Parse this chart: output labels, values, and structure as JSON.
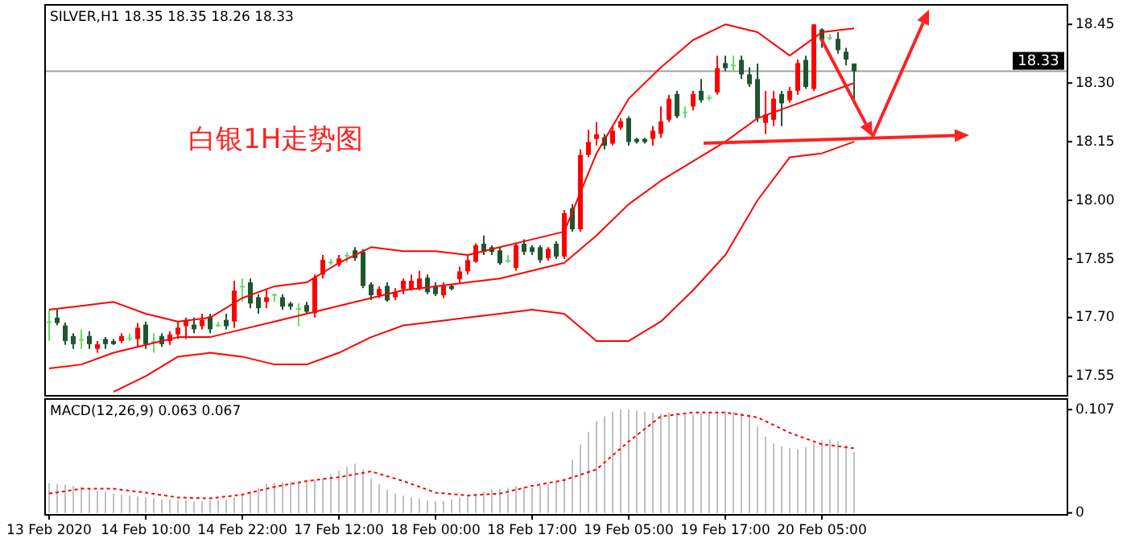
{
  "chart_data": [
    {
      "type": "candlestick",
      "title": "SILVER,H1  18.35 18.35 18.26 18.33",
      "categories": [
        null,
        null,
        null,
        null,
        null,
        null,
        null,
        null,
        null,
        null,
        null,
        null,
        null,
        null,
        null,
        null,
        null,
        null,
        null,
        null,
        null,
        null,
        null,
        null,
        null,
        null,
        null,
        null,
        null,
        null,
        null,
        null,
        null,
        null,
        null,
        null,
        null,
        null,
        null,
        null,
        null,
        null,
        null,
        null,
        null,
        null,
        null,
        null,
        null,
        null,
        null,
        null,
        null,
        null,
        null,
        null,
        null,
        null,
        null,
        null,
        null,
        null,
        null,
        null,
        null,
        null,
        null,
        null,
        null,
        null,
        null,
        null,
        null,
        null,
        null,
        null,
        null,
        null,
        null,
        null,
        null,
        null,
        null,
        null,
        null,
        null,
        null,
        null,
        null,
        null,
        null,
        null,
        null,
        null,
        null,
        null,
        null,
        null,
        null,
        null,
        null,
        null,
        null,
        null,
        null,
        null,
        null,
        null,
        null,
        null,
        null,
        null,
        null,
        null,
        null,
        null,
        null,
        null,
        null,
        null,
        null,
        null,
        null,
        null,
        null,
        null,
        null
      ],
      "ohlc": [
        [
          17.69,
          17.72,
          17.64,
          17.69
        ],
        [
          17.7,
          17.72,
          17.68,
          17.686
        ],
        [
          17.68,
          17.687,
          17.63,
          17.64
        ],
        [
          17.653,
          17.66,
          17.62,
          17.632
        ],
        [
          17.645,
          17.67,
          17.62,
          17.645
        ],
        [
          17.653,
          17.665,
          17.62,
          17.632
        ],
        [
          17.62,
          17.64,
          17.61,
          17.632
        ],
        [
          17.645,
          17.65,
          17.62,
          17.632
        ],
        [
          17.64,
          17.645,
          17.63,
          17.632
        ],
        [
          17.64,
          17.66,
          17.635,
          17.653
        ],
        [
          17.649,
          17.66,
          17.64,
          17.649
        ],
        [
          17.645,
          17.686,
          17.625,
          17.674
        ],
        [
          17.682,
          17.69,
          17.62,
          17.632
        ],
        [
          17.64,
          17.66,
          17.61,
          17.64
        ],
        [
          17.653,
          17.66,
          17.625,
          17.632
        ],
        [
          17.64,
          17.665,
          17.63,
          17.657
        ],
        [
          17.657,
          17.69,
          17.645,
          17.674
        ],
        [
          17.678,
          17.7,
          17.645,
          17.694
        ],
        [
          17.682,
          17.7,
          17.66,
          17.67
        ],
        [
          17.678,
          17.71,
          17.67,
          17.694
        ],
        [
          17.703,
          17.71,
          17.66,
          17.67
        ],
        [
          17.682,
          17.69,
          17.676,
          17.682
        ],
        [
          17.694,
          17.71,
          17.67,
          17.678
        ],
        [
          17.69,
          17.794,
          17.674,
          17.769
        ],
        [
          17.781,
          17.8,
          17.74,
          17.781
        ],
        [
          17.79,
          17.8,
          17.724,
          17.736
        ],
        [
          17.752,
          17.76,
          17.71,
          17.724
        ],
        [
          17.74,
          17.77,
          17.724,
          17.752
        ],
        [
          17.76,
          17.762,
          17.74,
          17.76
        ],
        [
          17.752,
          17.76,
          17.72,
          17.728
        ],
        [
          17.736,
          17.74,
          17.72,
          17.728
        ],
        [
          17.724,
          17.736,
          17.678,
          17.724
        ],
        [
          17.732,
          17.74,
          17.71,
          17.715
        ],
        [
          17.711,
          17.81,
          17.7,
          17.802
        ],
        [
          17.81,
          17.86,
          17.8,
          17.848
        ],
        [
          17.843,
          17.85,
          17.835,
          17.843
        ],
        [
          17.835,
          17.86,
          17.83,
          17.851
        ],
        [
          17.86,
          17.867,
          17.84,
          17.86
        ],
        [
          17.872,
          17.88,
          17.845,
          17.852
        ],
        [
          17.868,
          17.875,
          17.775,
          17.781
        ],
        [
          17.785,
          17.79,
          17.745,
          17.757
        ],
        [
          17.757,
          17.78,
          17.75,
          17.773
        ],
        [
          17.781,
          17.79,
          17.74,
          17.744
        ],
        [
          17.752,
          17.775,
          17.745,
          17.765
        ],
        [
          17.773,
          17.8,
          17.76,
          17.794
        ],
        [
          17.773,
          17.81,
          17.77,
          17.794
        ],
        [
          17.773,
          17.82,
          17.77,
          17.8
        ],
        [
          17.802,
          17.81,
          17.76,
          17.765
        ],
        [
          17.781,
          17.79,
          17.755,
          17.76
        ],
        [
          17.757,
          17.79,
          17.75,
          17.781
        ],
        [
          17.781,
          17.785,
          17.77,
          17.773
        ],
        [
          17.798,
          17.83,
          17.79,
          17.818
        ],
        [
          17.818,
          17.86,
          17.81,
          17.847
        ],
        [
          17.843,
          17.89,
          17.84,
          17.885
        ],
        [
          17.889,
          17.91,
          17.86,
          17.868
        ],
        [
          17.88,
          17.885,
          17.86,
          17.868
        ],
        [
          17.872,
          17.88,
          17.835,
          17.839
        ],
        [
          17.847,
          17.86,
          17.84,
          17.847
        ],
        [
          17.827,
          17.89,
          17.82,
          17.885
        ],
        [
          17.889,
          17.9,
          17.86,
          17.868
        ],
        [
          17.88,
          17.885,
          17.86,
          17.868
        ],
        [
          17.88,
          17.885,
          17.84,
          17.847
        ],
        [
          17.852,
          17.88,
          17.845,
          17.876
        ],
        [
          17.889,
          17.895,
          17.85,
          17.856
        ],
        [
          17.856,
          17.975,
          17.85,
          17.967
        ],
        [
          17.979,
          17.99,
          17.92,
          17.926
        ],
        [
          17.926,
          18.13,
          17.92,
          18.116
        ],
        [
          18.116,
          18.18,
          18.11,
          18.149
        ],
        [
          18.157,
          18.2,
          18.14,
          18.169
        ],
        [
          18.161,
          18.17,
          18.13,
          18.14
        ],
        [
          18.145,
          18.19,
          18.14,
          18.178
        ],
        [
          18.186,
          18.21,
          18.18,
          18.202
        ],
        [
          18.21,
          18.215,
          18.14,
          18.149
        ],
        [
          18.157,
          18.16,
          18.145,
          18.149
        ],
        [
          18.157,
          18.16,
          18.145,
          18.149
        ],
        [
          18.157,
          18.19,
          18.14,
          18.178
        ],
        [
          18.17,
          18.24,
          18.16,
          18.202
        ],
        [
          18.206,
          18.27,
          18.2,
          18.26
        ],
        [
          18.272,
          18.28,
          18.21,
          18.215
        ],
        [
          18.227,
          18.24,
          18.21,
          18.227
        ],
        [
          18.24,
          18.28,
          18.23,
          18.272
        ],
        [
          18.28,
          18.31,
          18.25,
          18.256
        ],
        [
          18.264,
          18.27,
          18.255,
          18.264
        ],
        [
          18.276,
          18.37,
          18.27,
          18.338
        ],
        [
          18.351,
          18.37,
          18.33,
          18.338
        ],
        [
          18.347,
          18.37,
          18.33,
          18.347
        ],
        [
          18.359,
          18.37,
          18.31,
          18.322
        ],
        [
          18.322,
          18.34,
          18.29,
          18.297
        ],
        [
          18.31,
          18.35,
          18.2,
          18.21
        ],
        [
          18.198,
          18.28,
          18.17,
          18.219
        ],
        [
          18.206,
          18.28,
          18.19,
          18.26
        ],
        [
          18.272,
          18.28,
          18.19,
          18.248
        ],
        [
          18.256,
          18.29,
          18.25,
          18.28
        ],
        [
          18.28,
          18.36,
          18.27,
          18.351
        ],
        [
          18.359,
          18.37,
          18.285,
          18.29
        ],
        [
          18.285,
          18.45,
          18.28,
          18.45
        ],
        [
          18.437,
          18.44,
          18.39,
          18.41
        ],
        [
          18.417,
          18.425,
          18.41,
          18.417
        ],
        [
          18.413,
          18.43,
          18.375,
          18.384
        ],
        [
          18.38,
          18.39,
          18.345,
          18.36
        ],
        [
          18.35,
          18.35,
          18.26,
          18.33
        ],
        null,
        null,
        null,
        null,
        null,
        null,
        null,
        null,
        null,
        null,
        null,
        null,
        null,
        null,
        null,
        null,
        null,
        null,
        null,
        null,
        null,
        null,
        null,
        null,
        null,
        null
      ],
      "colors": [
        "#66dd66",
        "#1e5631",
        "#1e5631",
        "#1e5631",
        "#66dd66",
        "#1e5631",
        "#ff0000",
        "#1e5631",
        "#1e5631",
        "#ff0000",
        "#66dd66",
        "#ff0000",
        "#1e5631",
        "#66dd66",
        "#1e5631",
        "#ff0000",
        "#ff0000",
        "#ff0000",
        "#1e5631",
        "#ff0000",
        "#1e5631",
        "#66dd66",
        "#1e5631",
        "#ff0000",
        "#66dd66",
        "#1e5631",
        "#1e5631",
        "#ff0000",
        "#66dd66",
        "#1e5631",
        "#1e5631",
        "#66dd66",
        "#1e5631",
        "#ff0000",
        "#ff0000",
        "#66dd66",
        "#ff0000",
        "#66dd66",
        "#1e5631",
        "#1e5631",
        "#1e5631",
        "#ff0000",
        "#1e5631",
        "#ff0000",
        "#ff0000",
        "#ff0000",
        "#ff0000",
        "#1e5631",
        "#1e5631",
        "#ff0000",
        "#1e5631",
        "#ff0000",
        "#ff0000",
        "#ff0000",
        "#1e5631",
        "#1e5631",
        "#1e5631",
        "#66dd66",
        "#ff0000",
        "#1e5631",
        "#1e5631",
        "#1e5631",
        "#ff0000",
        "#1e5631",
        "#ff0000",
        "#1e5631",
        "#ff0000",
        "#ff0000",
        "#ff0000",
        "#1e5631",
        "#ff0000",
        "#ff0000",
        "#1e5631",
        "#1e5631",
        "#1e5631",
        "#ff0000",
        "#ff0000",
        "#ff0000",
        "#1e5631",
        "#66dd66",
        "#ff0000",
        "#1e5631",
        "#66dd66",
        "#ff0000",
        "#1e5631",
        "#66dd66",
        "#1e5631",
        "#1e5631",
        "#1e5631",
        "#ff0000",
        "#ff0000",
        "#1e5631",
        "#ff0000",
        "#ff0000",
        "#1e5631",
        "#ff0000",
        "#1e5631",
        "#66dd66",
        "#1e5631",
        "#1e5631",
        "#1e5631",
        null,
        null,
        null,
        null,
        null,
        null,
        null,
        null,
        null,
        null,
        null,
        null,
        null,
        null,
        null,
        null,
        null,
        null,
        null,
        null,
        null,
        null,
        null,
        null,
        null,
        null
      ],
      "series": [
        {
          "type": "line",
          "color": "#ff0000",
          "values": [
            17.72,
            null,
            null,
            null,
            17.73,
            null,
            null,
            null,
            17.74,
            null,
            null,
            null,
            17.71,
            null,
            null,
            null,
            17.69,
            null,
            null,
            null,
            17.7,
            null,
            null,
            null,
            17.75,
            null,
            null,
            null,
            17.78,
            null,
            null,
            null,
            17.79,
            null,
            null,
            null,
            17.84,
            null,
            null,
            null,
            17.88,
            null,
            null,
            null,
            17.87,
            null,
            null,
            null,
            17.87,
            null,
            null,
            null,
            17.86,
            null,
            null,
            null,
            17.88,
            null,
            null,
            null,
            17.9,
            null,
            null,
            null,
            17.92,
            null,
            null,
            null,
            18.12,
            null,
            null,
            null,
            18.26,
            null,
            null,
            null,
            18.34,
            null,
            null,
            null,
            18.41,
            null,
            null,
            null,
            18.45,
            null,
            null,
            null,
            18.43,
            null,
            null,
            null,
            18.37,
            null,
            null,
            null,
            18.43,
            null,
            null,
            null,
            18.44,
            null,
            null,
            null,
            null,
            null,
            null,
            null,
            null,
            null,
            null,
            null,
            null,
            null,
            null,
            null,
            null,
            null,
            null,
            null,
            null,
            null,
            null,
            null,
            null,
            null,
            null
          ]
        },
        {
          "type": "line",
          "color": "#ff0000",
          "values": [
            17.57,
            null,
            null,
            null,
            17.58,
            null,
            null,
            null,
            17.61,
            null,
            null,
            null,
            17.63,
            null,
            null,
            null,
            17.65,
            null,
            null,
            null,
            17.65,
            null,
            null,
            null,
            17.67,
            null,
            null,
            null,
            17.69,
            null,
            null,
            null,
            17.71,
            null,
            null,
            null,
            17.73,
            null,
            null,
            null,
            17.75,
            null,
            null,
            null,
            17.77,
            null,
            null,
            null,
            17.78,
            null,
            null,
            null,
            17.79,
            null,
            null,
            null,
            17.8,
            null,
            null,
            null,
            17.82,
            null,
            null,
            null,
            17.84,
            null,
            null,
            null,
            17.91,
            null,
            null,
            null,
            17.99,
            null,
            null,
            null,
            18.05,
            null,
            null,
            null,
            18.1,
            null,
            null,
            null,
            18.15,
            null,
            null,
            null,
            18.21,
            null,
            null,
            null,
            18.24,
            null,
            null,
            null,
            18.27,
            null,
            null,
            null,
            18.3,
            null,
            null,
            null,
            null,
            null,
            null,
            null,
            null,
            null,
            null,
            null,
            null,
            null,
            null,
            null,
            null,
            null,
            null,
            null,
            null,
            null,
            null,
            null,
            null,
            null,
            null
          ]
        },
        {
          "type": "line",
          "color": "#ff0000",
          "values": [
            null,
            null,
            null,
            null,
            null,
            null,
            null,
            null,
            17.51,
            null,
            null,
            null,
            17.55,
            null,
            null,
            null,
            17.6,
            null,
            null,
            null,
            17.61,
            null,
            null,
            null,
            17.6,
            null,
            null,
            null,
            17.58,
            null,
            null,
            null,
            17.58,
            null,
            null,
            null,
            17.61,
            null,
            null,
            null,
            17.65,
            null,
            null,
            null,
            17.68,
            null,
            null,
            null,
            17.69,
            null,
            null,
            null,
            17.7,
            null,
            null,
            null,
            17.71,
            null,
            null,
            null,
            17.72,
            null,
            null,
            null,
            17.71,
            null,
            null,
            null,
            17.64,
            null,
            null,
            null,
            17.64,
            null,
            null,
            null,
            17.69,
            null,
            null,
            null,
            17.77,
            null,
            null,
            null,
            17.86,
            null,
            null,
            null,
            18.0,
            null,
            null,
            null,
            18.11,
            null,
            null,
            null,
            18.12,
            null,
            null,
            null,
            18.15,
            null,
            null,
            null,
            null,
            null,
            null,
            null,
            null,
            null,
            null,
            null,
            null,
            null,
            null,
            null,
            null,
            null,
            null,
            null,
            null,
            null,
            null,
            null,
            null,
            null,
            null
          ]
        }
      ],
      "ylim": [
        17.5,
        18.5
      ],
      "yticks": [
        {
          "value": 17.55,
          "label": "17.55"
        },
        {
          "value": 17.7,
          "label": "17.70"
        },
        {
          "value": 17.85,
          "label": "17.85"
        },
        {
          "value": 18.0,
          "label": "18.00"
        },
        {
          "value": 18.15,
          "label": "18.15"
        },
        {
          "value": 18.3,
          "label": "18.30"
        },
        {
          "value": 18.45,
          "label": "18.45"
        }
      ],
      "ref_lines": [
        {
          "axis": "y",
          "value": 18.33,
          "label": "18.33",
          "color": "#a0a0a0"
        }
      ],
      "annotations": [
        "白银1H走势图"
      ]
    },
    {
      "type": "bar",
      "title": "MACD(12,26,9) 0.063 0.067",
      "categories": [
        "13 Feb 2020",
        null,
        null,
        null,
        null,
        null,
        null,
        null,
        null,
        null,
        null,
        null,
        "14 Feb 10:00",
        null,
        null,
        null,
        null,
        null,
        null,
        null,
        null,
        null,
        null,
        null,
        "14 Feb 22:00",
        null,
        null,
        null,
        null,
        null,
        null,
        null,
        null,
        null,
        null,
        null,
        "17 Feb 12:00",
        null,
        null,
        null,
        null,
        null,
        null,
        null,
        null,
        null,
        null,
        null,
        "18 Feb 00:00",
        null,
        null,
        null,
        null,
        null,
        null,
        null,
        null,
        null,
        null,
        null,
        "18 Feb 17:00",
        null,
        null,
        null,
        null,
        null,
        null,
        null,
        null,
        null,
        null,
        null,
        "19 Feb 05:00",
        null,
        null,
        null,
        null,
        null,
        null,
        null,
        null,
        null,
        null,
        null,
        "19 Feb 17:00",
        null,
        null,
        null,
        null,
        null,
        null,
        null,
        null,
        null,
        null,
        null,
        "20 Feb 05:00",
        null,
        null,
        null,
        null,
        null,
        null,
        null,
        null,
        null,
        null,
        null,
        null,
        null,
        null,
        null,
        null,
        null,
        null,
        null,
        null,
        null,
        null,
        null,
        null,
        null,
        null,
        null,
        null,
        null,
        null
      ],
      "series": [
        {
          "type": "bar",
          "color": "#c0c0c0",
          "values": [
            0.031,
            0.03,
            0.029,
            0.028,
            0.027,
            0.025,
            0.023,
            0.022,
            0.02,
            0.019,
            0.018,
            0.017,
            0.016,
            0.015,
            0.014,
            0.014,
            0.013,
            0.013,
            0.012,
            0.012,
            0.013,
            0.013,
            0.014,
            0.016,
            0.019,
            0.022,
            0.026,
            0.03,
            0.031,
            0.032,
            0.032,
            0.031,
            0.032,
            0.034,
            0.036,
            0.04,
            0.044,
            0.048,
            0.051,
            0.045,
            0.036,
            0.03,
            0.024,
            0.02,
            0.018,
            0.016,
            0.015,
            0.013,
            0.012,
            0.012,
            0.014,
            0.016,
            0.019,
            0.02,
            0.022,
            0.024,
            0.025,
            0.026,
            0.028,
            0.027,
            0.026,
            0.028,
            0.03,
            0.032,
            0.036,
            0.055,
            0.071,
            0.084,
            0.095,
            0.1,
            0.105,
            0.107,
            0.107,
            0.106,
            0.105,
            0.104,
            0.103,
            0.104,
            0.104,
            0.103,
            0.102,
            0.103,
            0.104,
            0.104,
            0.105,
            0.105,
            0.104,
            0.102,
            0.09,
            0.079,
            0.072,
            0.069,
            0.067,
            0.066,
            0.068,
            0.072,
            0.075,
            0.076,
            0.074,
            0.07,
            0.063,
            null,
            null,
            null,
            null,
            null,
            null,
            null,
            null,
            null,
            null,
            null,
            null,
            null,
            null,
            null,
            null,
            null,
            null,
            null,
            null,
            null,
            null,
            null,
            null,
            null,
            null
          ]
        },
        {
          "type": "line",
          "color": "#ff0000",
          "line_style": "dotted",
          "values": [
            0.02,
            null,
            null,
            null,
            0.025,
            null,
            null,
            null,
            0.025,
            null,
            null,
            null,
            0.021,
            null,
            null,
            null,
            0.016,
            null,
            null,
            null,
            0.015,
            null,
            null,
            null,
            0.019,
            null,
            null,
            null,
            0.027,
            null,
            null,
            null,
            0.033,
            null,
            null,
            null,
            0.037,
            null,
            null,
            null,
            0.043,
            null,
            null,
            null,
            0.033,
            null,
            null,
            null,
            0.021,
            null,
            null,
            null,
            0.018,
            null,
            null,
            null,
            0.02,
            null,
            null,
            null,
            0.028,
            null,
            null,
            null,
            0.034,
            null,
            null,
            null,
            0.045,
            null,
            null,
            null,
            0.074,
            null,
            null,
            null,
            0.1,
            null,
            null,
            null,
            0.104,
            null,
            null,
            null,
            0.104,
            null,
            null,
            null,
            0.099,
            null,
            null,
            null,
            0.083,
            null,
            null,
            null,
            0.071,
            null,
            null,
            null,
            0.067,
            null,
            null,
            null,
            null,
            null,
            null,
            null,
            null,
            null,
            null,
            null,
            null,
            null,
            null,
            null,
            null,
            null,
            null,
            null,
            null,
            null,
            null,
            null,
            null,
            null,
            null
          ]
        }
      ],
      "ylim": [
        -0.002,
        0.118
      ],
      "yticks": [
        0.107,
        0
      ]
    }
  ]
}
